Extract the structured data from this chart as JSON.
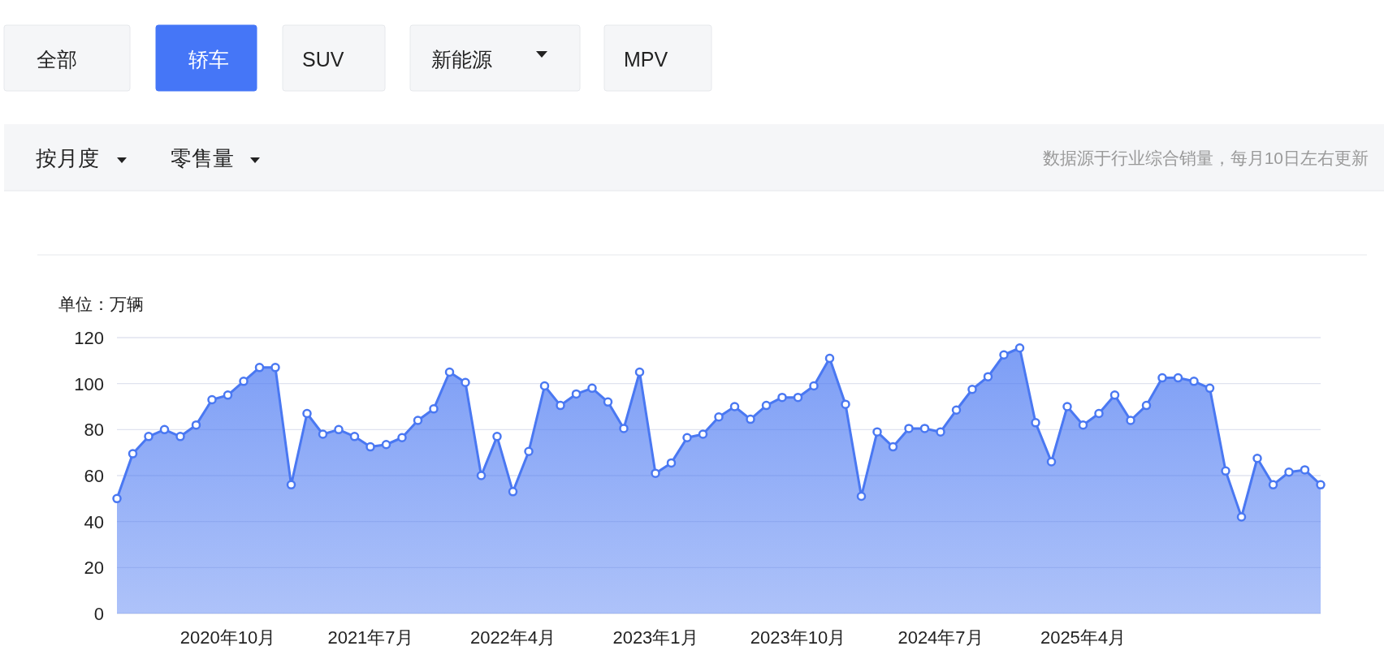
{
  "chart_data": {
    "type": "area",
    "ylabel": "单位：万辆",
    "annotations": [
      "全部",
      "轿车",
      "SUV",
      "新能源",
      "MPV",
      "按月度",
      "零售量",
      "数据源于行业综合销量，每月10日左右更新"
    ],
    "x": [
      "2020-03",
      "2020-04",
      "2020-05",
      "2020-06",
      "2020-07",
      "2020-08",
      "2020-09",
      "2020-10",
      "2020-11",
      "2020-12",
      "2021-01",
      "2021-02",
      "2021-03",
      "2021-04",
      "2021-05",
      "2021-06",
      "2021-07",
      "2021-08",
      "2021-09",
      "2021-10",
      "2021-11",
      "2021-12",
      "2022-01",
      "2022-02",
      "2022-03",
      "2022-04",
      "2022-05",
      "2022-06",
      "2022-07",
      "2022-08",
      "2022-09",
      "2022-10",
      "2022-11",
      "2022-12",
      "2023-01",
      "2023-02",
      "2023-03",
      "2023-04",
      "2023-05",
      "2023-06",
      "2023-07",
      "2023-08",
      "2023-09",
      "2023-10",
      "2023-11",
      "2023-12",
      "2024-01",
      "2024-02",
      "2024-03",
      "2024-04",
      "2024-05",
      "2024-06",
      "2024-07",
      "2024-08",
      "2024-09",
      "2024-10",
      "2024-11",
      "2024-12",
      "2025-01",
      "2025-02",
      "2025-03",
      "2025-04",
      "2025-05",
      "2025-06",
      "2025-07",
      "2025-08",
      "2025-09",
      "2025-10",
      "2025-11",
      "2025-12",
      "2026-01",
      "2026-02",
      "2026-03",
      "2026-04",
      "2026-05",
      "2026-06",
      "2026-07"
    ],
    "series": [
      {
        "color": "#4a78f2",
        "values": [
          50,
          69.5,
          77,
          80,
          77,
          82,
          93,
          95,
          101,
          107,
          107,
          56,
          87,
          78,
          80,
          77,
          72.5,
          73.5,
          76.5,
          84,
          89,
          105,
          100.5,
          60,
          77,
          53,
          70.5,
          99,
          90.5,
          95.5,
          98,
          92,
          80.5,
          105,
          61,
          65.5,
          76.5,
          78,
          85.5,
          90,
          84.5,
          90.5,
          94,
          94,
          99,
          111,
          91,
          51,
          79,
          72.5,
          80.5,
          80.5,
          79,
          88.5,
          97.5,
          103,
          112.5,
          115.5,
          83,
          66,
          90,
          82,
          87,
          95,
          84,
          90.5,
          102.5,
          102.5,
          101,
          98,
          62,
          42,
          67.5,
          56,
          61.5,
          62.5,
          56
        ]
      }
    ],
    "xlim": [
      "2020-03",
      "2026-07"
    ],
    "xticks": [
      {
        "value": "2020-10",
        "label": "2020年10月"
      },
      {
        "value": "2021-07",
        "label": "2021年7月"
      },
      {
        "value": "2022-04",
        "label": "2022年4月"
      },
      {
        "value": "2023-01",
        "label": "2023年1月"
      },
      {
        "value": "2023-10",
        "label": "2023年10月"
      },
      {
        "value": "2024-07",
        "label": "2024年7月"
      },
      {
        "value": "2025-04",
        "label": "2025年4月"
      }
    ],
    "ylim": [
      0,
      120
    ],
    "yticks": [
      0,
      20,
      40,
      60,
      80,
      100,
      120
    ],
    "grid": "y",
    "marker": "circle",
    "line_style": "solid"
  }
}
